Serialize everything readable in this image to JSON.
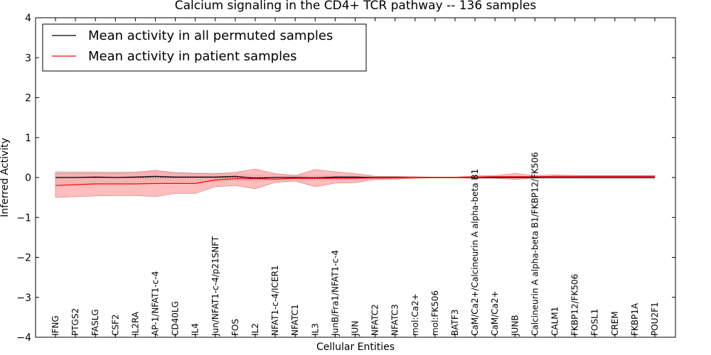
{
  "chart_data": {
    "type": "line",
    "title": "Calcium signaling in the CD4+ TCR pathway -- 136 samples",
    "xlabel": "Cellular Entities",
    "ylabel": "Inferred Activity",
    "ylim": [
      -4,
      4
    ],
    "yticks": [
      -4,
      -3,
      -2,
      -1,
      0,
      1,
      2,
      3,
      4
    ],
    "ytick_labels": [
      "−4",
      "−3",
      "−2",
      "−1",
      "0",
      "1",
      "2",
      "3",
      "4"
    ],
    "grid": false,
    "legend_position": "top-left",
    "categories": [
      "IFNG",
      "PTGS2",
      "FASLG",
      "CSF2",
      "IL2RA",
      "AP-1/NFAT1-c-4",
      "CD40LG",
      "IL4",
      "Jun/NFAT1-c-4/p21SNFT",
      "FOS",
      "IL2",
      "NFAT1-c-4/ICER1",
      "NFATC1",
      "IL3",
      "JunB/Fra1/NFAT1-c-4",
      "JUN",
      "NFATC2",
      "NFATC3",
      "mol:Ca2+",
      "mol:FK506",
      "BATF3",
      "CaM/Ca2+/Calcineurin A alpha-beta B1",
      "CaM/Ca2+",
      "JUNB",
      "Calcineurin A alpha-beta B1/FKBP12/FK506",
      "CALM1",
      "FKBP12/FK506",
      "FOSL1",
      "CREM",
      "FKBP1A",
      "POU2F1"
    ],
    "series": [
      {
        "name": "Mean activity in all permuted samples",
        "color": "#000000",
        "band_color": "#c8c8c8",
        "values": [
          0.0,
          0.0,
          0.01,
          0.0,
          0.01,
          0.03,
          0.01,
          0.01,
          0.01,
          0.03,
          -0.02,
          0.0,
          0.0,
          -0.01,
          0.01,
          0.01,
          0.0,
          0.0,
          0.0,
          0.0,
          0.0,
          0.0,
          0.0,
          0.0,
          0.0,
          0.0,
          0.0,
          0.0,
          0.0,
          0.0,
          0.0
        ],
        "lower": [
          -0.17,
          -0.16,
          -0.15,
          -0.15,
          -0.14,
          -0.12,
          -0.13,
          -0.12,
          -0.11,
          -0.09,
          -0.11,
          -0.08,
          -0.07,
          -0.07,
          -0.06,
          -0.05,
          -0.04,
          -0.03,
          -0.02,
          -0.02,
          -0.02,
          -0.02,
          -0.03,
          -0.03,
          -0.04,
          -0.04,
          -0.04,
          -0.05,
          -0.05,
          -0.05,
          -0.05
        ],
        "upper": [
          0.17,
          0.16,
          0.16,
          0.15,
          0.15,
          0.17,
          0.14,
          0.13,
          0.12,
          0.12,
          0.09,
          0.08,
          0.07,
          0.06,
          0.07,
          0.06,
          0.04,
          0.03,
          0.02,
          0.02,
          0.02,
          0.02,
          0.03,
          0.03,
          0.04,
          0.04,
          0.04,
          0.05,
          0.05,
          0.05,
          0.05
        ]
      },
      {
        "name": "Mean activity in patient samples",
        "color": "#ff0000",
        "band_color": "#ff9999",
        "values": [
          -0.2,
          -0.18,
          -0.16,
          -0.16,
          -0.16,
          -0.15,
          -0.15,
          -0.15,
          -0.06,
          -0.03,
          -0.03,
          -0.04,
          -0.02,
          -0.02,
          -0.02,
          -0.02,
          -0.01,
          -0.01,
          0.0,
          0.0,
          0.0,
          0.01,
          0.02,
          0.02,
          0.02,
          0.03,
          0.03,
          0.03,
          0.03,
          0.03,
          0.03
        ],
        "lower": [
          -0.5,
          -0.48,
          -0.46,
          -0.45,
          -0.45,
          -0.48,
          -0.4,
          -0.4,
          -0.23,
          -0.2,
          -0.28,
          -0.12,
          -0.09,
          -0.23,
          -0.14,
          -0.13,
          -0.05,
          -0.04,
          -0.02,
          -0.01,
          -0.01,
          -0.02,
          -0.02,
          -0.05,
          -0.01,
          0.01,
          0.01,
          0.01,
          0.01,
          0.01,
          0.01
        ],
        "upper": [
          0.12,
          0.12,
          0.12,
          0.12,
          0.13,
          0.18,
          0.12,
          0.1,
          0.09,
          0.13,
          0.21,
          0.1,
          0.05,
          0.2,
          0.14,
          0.1,
          0.03,
          0.03,
          0.02,
          0.01,
          0.01,
          0.04,
          0.05,
          0.1,
          0.05,
          0.06,
          0.05,
          0.05,
          0.05,
          0.05,
          0.05
        ]
      }
    ]
  }
}
